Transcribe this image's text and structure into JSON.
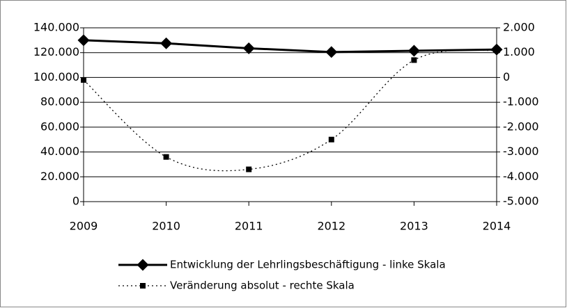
{
  "chart_data": {
    "type": "line",
    "categories": [
      "2009",
      "2010",
      "2011",
      "2012",
      "2013",
      "2014"
    ],
    "series": [
      {
        "name": "Entwicklung der Lehrlingsbeschäftigung - linke Skala",
        "color": "#000000",
        "values": [
          130000,
          127500,
          123500,
          120500,
          121500,
          122500
        ]
      },
      {
        "name": "Veränderung absolut - rechte Skala",
        "color": "#000000",
        "axis": "y2",
        "values": [
          -100,
          -3200,
          -3700,
          -2500,
          700,
          1100
        ]
      }
    ],
    "ylim": [
      0,
      140000
    ],
    "yticks": [
      0,
      {
        "value": 20000,
        "label": "20.000"
      },
      {
        "value": 40000,
        "label": "40.000"
      },
      {
        "value": 60000,
        "label": "60.000"
      },
      {
        "value": 80000,
        "label": "80.000"
      },
      {
        "value": 100000,
        "label": "100.000"
      },
      {
        "value": 120000,
        "label": "120.000"
      },
      {
        "value": 140000,
        "label": "140.000"
      }
    ],
    "y2lim": [
      -5000,
      2000
    ],
    "y2ticks": [
      {
        "value": -5000,
        "label": "-5.000"
      },
      {
        "value": -4000,
        "label": "-4.000"
      },
      {
        "value": -3000,
        "label": "-3.000"
      },
      {
        "value": -2000,
        "label": "-2.000"
      },
      {
        "value": -1000,
        "label": "-1.000"
      },
      0,
      {
        "value": 1000,
        "label": "1.000"
      },
      {
        "value": 2000,
        "label": "2.000"
      }
    ],
    "grid": true,
    "legend": "bottom"
  }
}
